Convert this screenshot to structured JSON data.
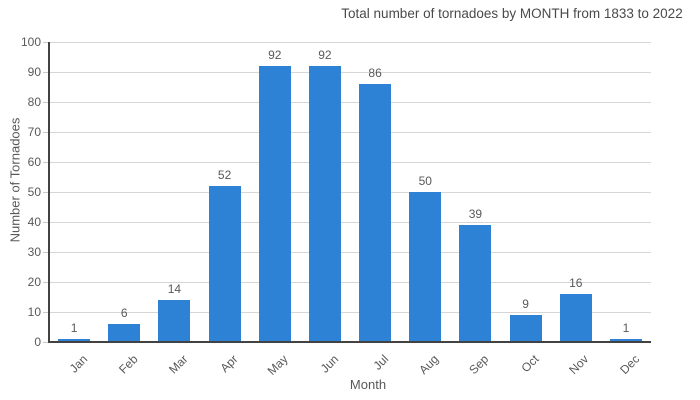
{
  "chart_data": {
    "type": "bar",
    "title": "Total number of tornadoes by MONTH from 1833 to 2022",
    "xlabel": "Month",
    "ylabel": "Number of Tornadoes",
    "categories": [
      "Jan",
      "Feb",
      "Mar",
      "Apr",
      "May",
      "Jun",
      "Jul",
      "Aug",
      "Sep",
      "Oct",
      "Nov",
      "Dec"
    ],
    "values": [
      1,
      6,
      14,
      52,
      92,
      92,
      86,
      50,
      39,
      9,
      16,
      1
    ],
    "ylim": [
      0,
      100
    ],
    "ytick_step": 10,
    "ytick_labels": [
      "0",
      "10",
      "20",
      "30",
      "40",
      "50",
      "60",
      "70",
      "80",
      "90",
      "100"
    ],
    "grid": true,
    "legend": "none",
    "colors": {
      "bar": "#2e82d6",
      "grid": "#d6d6d6",
      "axis": "#424242",
      "tick_mark": "#c9c9c9",
      "text": "#595959",
      "title_text": "#4a4a4a",
      "background": "#ffffff"
    }
  }
}
